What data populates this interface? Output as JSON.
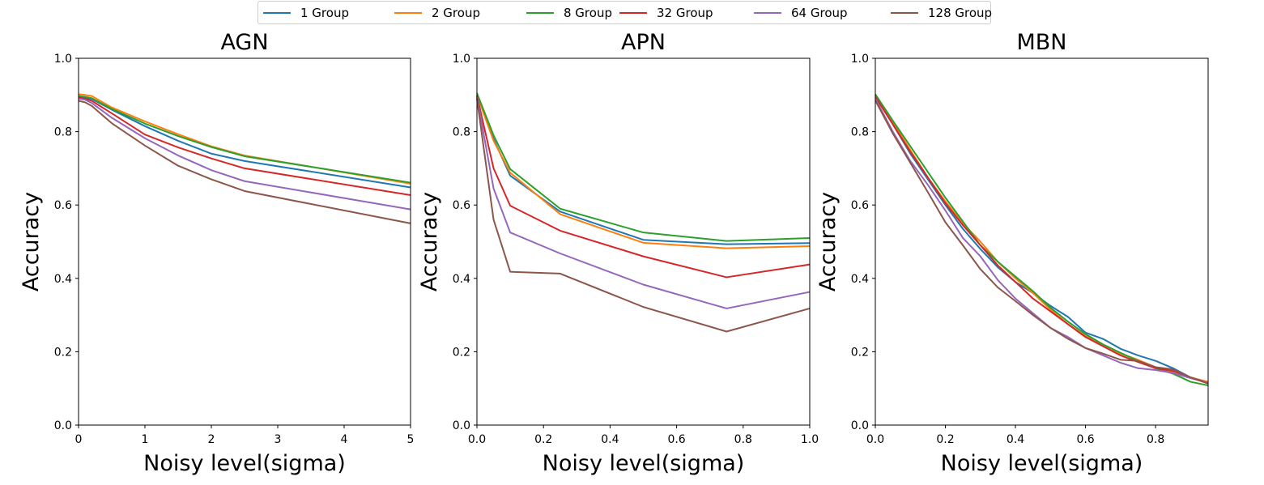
{
  "legend": {
    "entries": [
      "1 Group",
      "2 Group",
      "8 Group",
      "32 Group",
      "64 Group",
      "128 Group"
    ],
    "colors": [
      "#1f77b4",
      "#ff7f0e",
      "#2ca02c",
      "#d62728",
      "#9467bd",
      "#8c564b"
    ],
    "placement": "top-center"
  },
  "chart_data": [
    {
      "type": "line",
      "title": "AGN",
      "xlabel": "Noisy level(sigma)",
      "ylabel": "Accuracy",
      "xlim": [
        0,
        5
      ],
      "ylim": [
        0,
        1.0
      ],
      "xticks": [
        "0",
        "1",
        "2",
        "3",
        "4",
        "5"
      ],
      "yticks": [
        "0.0",
        "0.2",
        "0.4",
        "0.6",
        "0.8",
        "1.0"
      ],
      "grid": false,
      "series": [
        {
          "name": "1 Group",
          "x": [
            0,
            0.1,
            0.2,
            0.5,
            1,
            1.5,
            2,
            2.5,
            5
          ],
          "y": [
            0.895,
            0.893,
            0.889,
            0.86,
            0.815,
            0.775,
            0.74,
            0.72,
            0.648
          ]
        },
        {
          "name": "2 Group",
          "x": [
            0,
            0.1,
            0.2,
            0.5,
            1,
            1.5,
            2,
            2.5,
            5
          ],
          "y": [
            0.902,
            0.9,
            0.897,
            0.866,
            0.828,
            0.793,
            0.76,
            0.735,
            0.658
          ]
        },
        {
          "name": "8 Group",
          "x": [
            0,
            0.1,
            0.2,
            0.5,
            1,
            1.5,
            2,
            2.5,
            5
          ],
          "y": [
            0.897,
            0.895,
            0.891,
            0.862,
            0.822,
            0.788,
            0.758,
            0.733,
            0.661
          ]
        },
        {
          "name": "32 Group",
          "x": [
            0,
            0.1,
            0.2,
            0.5,
            1,
            1.5,
            2,
            2.5,
            5
          ],
          "y": [
            0.893,
            0.89,
            0.884,
            0.85,
            0.792,
            0.757,
            0.727,
            0.7,
            0.627
          ]
        },
        {
          "name": "64 Group",
          "x": [
            0,
            0.1,
            0.2,
            0.5,
            1,
            1.5,
            2,
            2.5,
            5
          ],
          "y": [
            0.89,
            0.887,
            0.878,
            0.838,
            0.782,
            0.735,
            0.695,
            0.665,
            0.588
          ]
        },
        {
          "name": "128 Group",
          "x": [
            0,
            0.1,
            0.2,
            0.5,
            1,
            1.5,
            2,
            2.5,
            5
          ],
          "y": [
            0.884,
            0.88,
            0.87,
            0.823,
            0.762,
            0.707,
            0.67,
            0.638,
            0.55
          ]
        }
      ]
    },
    {
      "type": "line",
      "title": "APN",
      "xlabel": "Noisy level(sigma)",
      "ylabel": "Accuracy",
      "xlim": [
        0,
        1.0
      ],
      "ylim": [
        0,
        1.0
      ],
      "xticks": [
        "0.0",
        "0.2",
        "0.4",
        "0.6",
        "0.8",
        "1.0"
      ],
      "yticks": [
        "0.0",
        "0.2",
        "0.4",
        "0.6",
        "0.8",
        "1.0"
      ],
      "grid": false,
      "series": [
        {
          "name": "1 Group",
          "x": [
            0,
            0.05,
            0.1,
            0.25,
            0.5,
            0.75,
            1.0
          ],
          "y": [
            0.9,
            0.78,
            0.68,
            0.582,
            0.505,
            0.493,
            0.496
          ]
        },
        {
          "name": "2 Group",
          "x": [
            0,
            0.05,
            0.1,
            0.25,
            0.5,
            0.75,
            1.0
          ],
          "y": [
            0.9,
            0.775,
            0.688,
            0.575,
            0.497,
            0.482,
            0.488
          ]
        },
        {
          "name": "8 Group",
          "x": [
            0,
            0.05,
            0.1,
            0.25,
            0.5,
            0.75,
            1.0
          ],
          "y": [
            0.905,
            0.79,
            0.698,
            0.59,
            0.525,
            0.502,
            0.51
          ]
        },
        {
          "name": "32 Group",
          "x": [
            0,
            0.05,
            0.1,
            0.25,
            0.5,
            0.75,
            1.0
          ],
          "y": [
            0.898,
            0.7,
            0.598,
            0.53,
            0.46,
            0.403,
            0.438
          ]
        },
        {
          "name": "64 Group",
          "x": [
            0,
            0.05,
            0.1,
            0.25,
            0.5,
            0.75,
            1.0
          ],
          "y": [
            0.895,
            0.645,
            0.525,
            0.468,
            0.383,
            0.318,
            0.363
          ]
        },
        {
          "name": "128 Group",
          "x": [
            0,
            0.05,
            0.1,
            0.25,
            0.5,
            0.75,
            1.0
          ],
          "y": [
            0.89,
            0.56,
            0.418,
            0.413,
            0.322,
            0.255,
            0.318
          ]
        }
      ]
    },
    {
      "type": "line",
      "title": "MBN",
      "xlabel": "Noisy level(sigma)",
      "ylabel": "Accuracy",
      "xlim": [
        0,
        0.95
      ],
      "ylim": [
        0,
        1.0
      ],
      "xticks": [
        "0.0",
        "0.2",
        "0.4",
        "0.6",
        "0.8"
      ],
      "yticks": [
        "0.0",
        "0.2",
        "0.4",
        "0.6",
        "0.8",
        "1.0"
      ],
      "grid": false,
      "series": [
        {
          "name": "1 Group",
          "x": [
            0,
            0.05,
            0.1,
            0.15,
            0.2,
            0.25,
            0.3,
            0.35,
            0.4,
            0.45,
            0.5,
            0.55,
            0.6,
            0.65,
            0.7,
            0.75,
            0.8,
            0.85,
            0.9,
            0.95
          ],
          "y": [
            0.9,
            0.82,
            0.74,
            0.67,
            0.6,
            0.535,
            0.48,
            0.43,
            0.39,
            0.36,
            0.325,
            0.295,
            0.252,
            0.235,
            0.208,
            0.19,
            0.175,
            0.155,
            0.13,
            0.115
          ]
        },
        {
          "name": "2 Group",
          "x": [
            0,
            0.05,
            0.1,
            0.15,
            0.2,
            0.25,
            0.3,
            0.35,
            0.4,
            0.45,
            0.5,
            0.55,
            0.6,
            0.65,
            0.7,
            0.75,
            0.8,
            0.85,
            0.9,
            0.95
          ],
          "y": [
            0.9,
            0.825,
            0.75,
            0.675,
            0.61,
            0.55,
            0.5,
            0.445,
            0.4,
            0.36,
            0.315,
            0.275,
            0.243,
            0.22,
            0.195,
            0.178,
            0.158,
            0.145,
            0.13,
            0.118
          ]
        },
        {
          "name": "8 Group",
          "x": [
            0,
            0.05,
            0.1,
            0.15,
            0.2,
            0.25,
            0.3,
            0.35,
            0.4,
            0.45,
            0.5,
            0.55,
            0.6,
            0.65,
            0.7,
            0.75,
            0.8,
            0.85,
            0.9,
            0.95
          ],
          "y": [
            0.902,
            0.83,
            0.76,
            0.69,
            0.62,
            0.555,
            0.49,
            0.445,
            0.405,
            0.365,
            0.32,
            0.282,
            0.248,
            0.22,
            0.197,
            0.175,
            0.155,
            0.14,
            0.118,
            0.108
          ]
        },
        {
          "name": "32 Group",
          "x": [
            0,
            0.05,
            0.1,
            0.15,
            0.2,
            0.25,
            0.3,
            0.35,
            0.4,
            0.45,
            0.5,
            0.55,
            0.6,
            0.65,
            0.7,
            0.75,
            0.8,
            0.85,
            0.9,
            0.95
          ],
          "y": [
            0.895,
            0.82,
            0.745,
            0.675,
            0.605,
            0.545,
            0.49,
            0.435,
            0.39,
            0.345,
            0.31,
            0.275,
            0.24,
            0.215,
            0.19,
            0.172,
            0.155,
            0.148,
            0.13,
            0.115
          ]
        },
        {
          "name": "64 Group",
          "x": [
            0,
            0.05,
            0.1,
            0.15,
            0.2,
            0.25,
            0.3,
            0.35,
            0.4,
            0.45,
            0.5,
            0.55,
            0.6,
            0.65,
            0.7,
            0.75,
            0.8,
            0.85,
            0.9,
            0.95
          ],
          "y": [
            0.89,
            0.8,
            0.72,
            0.655,
            0.585,
            0.51,
            0.46,
            0.395,
            0.345,
            0.305,
            0.265,
            0.24,
            0.21,
            0.19,
            0.17,
            0.155,
            0.15,
            0.142,
            0.128,
            0.115
          ]
        },
        {
          "name": "128 Group",
          "x": [
            0,
            0.05,
            0.1,
            0.15,
            0.2,
            0.25,
            0.3,
            0.35,
            0.4,
            0.45,
            0.5,
            0.55,
            0.6,
            0.65,
            0.7,
            0.75,
            0.8,
            0.85,
            0.9,
            0.95
          ],
          "y": [
            0.885,
            0.795,
            0.715,
            0.635,
            0.553,
            0.49,
            0.425,
            0.375,
            0.338,
            0.3,
            0.265,
            0.235,
            0.21,
            0.195,
            0.178,
            0.175,
            0.158,
            0.152,
            0.13,
            0.113
          ]
        }
      ]
    }
  ]
}
